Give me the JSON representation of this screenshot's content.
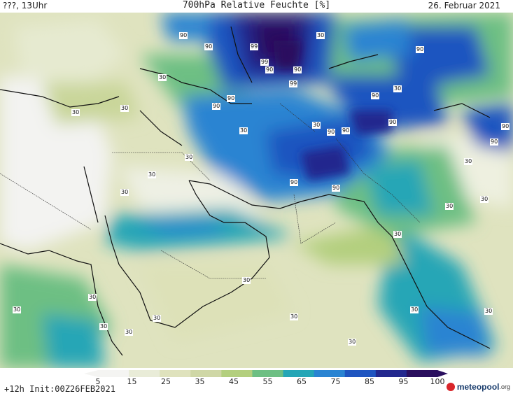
{
  "header": {
    "left_label": "???, 13Uhr",
    "title": "700hPa Relative Feuchte [%]",
    "date": "26. Februar 2021"
  },
  "footer": {
    "init_label": "+12h Init:00Z26FEB2021",
    "logo_text": "meteopool",
    "logo_suffix": ".org"
  },
  "legend": {
    "ticks": [
      "5",
      "15",
      "25",
      "35",
      "45",
      "55",
      "65",
      "75",
      "85",
      "95",
      "100"
    ],
    "colors": [
      "#f4f4f2",
      "#e9ecd8",
      "#dfe2bd",
      "#cfd7a6",
      "#b3cf7e",
      "#6dbf83",
      "#25a6b6",
      "#2a84d2",
      "#1f55c0",
      "#23288e",
      "#2a0f5e"
    ]
  },
  "map": {
    "isoline_labels": [
      "90",
      "90",
      "99",
      "99",
      "90",
      "99",
      "90",
      "90",
      "90",
      "90",
      "90",
      "90",
      "90",
      "90",
      "90",
      "90",
      "90",
      "90",
      "30",
      "30",
      "30",
      "30",
      "30",
      "30",
      "30",
      "30",
      "30",
      "30",
      "30",
      "30",
      "30",
      "30",
      "30",
      "30",
      "30",
      "30",
      "30",
      "30",
      "30",
      "30",
      "30",
      "30"
    ]
  }
}
